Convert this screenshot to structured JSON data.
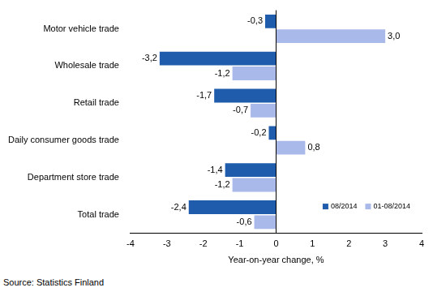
{
  "chart_data": {
    "type": "bar",
    "orientation": "horizontal",
    "categories": [
      "Motor vehicle trade",
      "Wholesale trade",
      "Retail trade",
      "Daily consumer goods trade",
      "Department store trade",
      "Total trade"
    ],
    "series": [
      {
        "name": "08/2014",
        "color": "#1f5cab",
        "values": [
          -0.3,
          -3.2,
          -1.7,
          -0.2,
          -1.4,
          -2.4
        ],
        "value_labels": [
          "-0,3",
          "-3,2",
          "-1,7",
          "-0,2",
          "-1,4",
          "-2,4"
        ]
      },
      {
        "name": "01-08/2014",
        "color": "#a9b9ea",
        "values": [
          3.0,
          -1.2,
          -0.7,
          0.8,
          -1.2,
          -0.6
        ],
        "value_labels": [
          "3,0",
          "-1,2",
          "-0,7",
          "0,8",
          "-1,2",
          "-0,6"
        ]
      }
    ],
    "x_label": "Year-on-year change, %",
    "xlim": [
      -4,
      4
    ],
    "xticks": [
      -4,
      -3,
      -2,
      -1,
      0,
      1,
      2,
      3,
      4
    ],
    "grid": false,
    "legend": "lower right",
    "data_labels": true,
    "source": "Source: Statistics Finland"
  }
}
